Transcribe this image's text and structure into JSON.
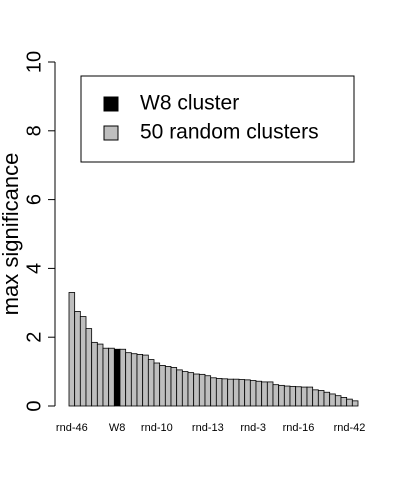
{
  "chart_data": {
    "type": "bar",
    "ylabel": "max significance",
    "categories": [
      "rnd-46",
      null,
      null,
      null,
      null,
      null,
      null,
      null,
      "W8",
      null,
      null,
      null,
      null,
      null,
      null,
      "rnd-10",
      null,
      null,
      null,
      null,
      null,
      null,
      null,
      null,
      "rnd-13",
      null,
      null,
      null,
      null,
      null,
      null,
      null,
      "rnd-3",
      null,
      null,
      null,
      null,
      null,
      null,
      null,
      "rnd-16",
      null,
      null,
      null,
      null,
      null,
      null,
      null,
      null,
      "rnd-42",
      null
    ],
    "values": [
      3.3,
      2.75,
      2.6,
      2.25,
      1.85,
      1.8,
      1.68,
      1.68,
      1.65,
      1.65,
      1.55,
      1.52,
      1.5,
      1.48,
      1.35,
      1.25,
      1.18,
      1.15,
      1.12,
      1.05,
      1.0,
      0.97,
      0.93,
      0.92,
      0.88,
      0.82,
      0.8,
      0.79,
      0.78,
      0.78,
      0.77,
      0.76,
      0.74,
      0.72,
      0.7,
      0.7,
      0.62,
      0.6,
      0.58,
      0.57,
      0.56,
      0.55,
      0.55,
      0.47,
      0.45,
      0.4,
      0.35,
      0.3,
      0.25,
      0.2,
      0.15
    ],
    "colors": [
      "#bebebe",
      "#bebebe",
      "#bebebe",
      "#bebebe",
      "#bebebe",
      "#bebebe",
      "#bebebe",
      "#bebebe",
      "#000000",
      "#bebebe",
      "#bebebe",
      "#bebebe",
      "#bebebe",
      "#bebebe",
      "#bebebe",
      "#bebebe",
      "#bebebe",
      "#bebebe",
      "#bebebe",
      "#bebebe",
      "#bebebe",
      "#bebebe",
      "#bebebe",
      "#bebebe",
      "#bebebe",
      "#bebebe",
      "#bebebe",
      "#bebebe",
      "#bebebe",
      "#bebebe",
      "#bebebe",
      "#bebebe",
      "#bebebe",
      "#bebebe",
      "#bebebe",
      "#bebebe",
      "#bebebe",
      "#bebebe",
      "#bebebe",
      "#bebebe",
      "#bebebe",
      "#bebebe",
      "#bebebe",
      "#bebebe",
      "#bebebe",
      "#bebebe",
      "#bebebe",
      "#bebebe",
      "#bebebe",
      "#bebebe",
      "#bebebe"
    ],
    "legend": [
      {
        "name": "W8 cluster",
        "color": "#000000"
      },
      {
        "name": "50 random clusters",
        "color": "#bebebe"
      }
    ],
    "ylim": [
      0,
      10
    ],
    "yticks": [
      0,
      2,
      4,
      6,
      8,
      10
    ]
  }
}
